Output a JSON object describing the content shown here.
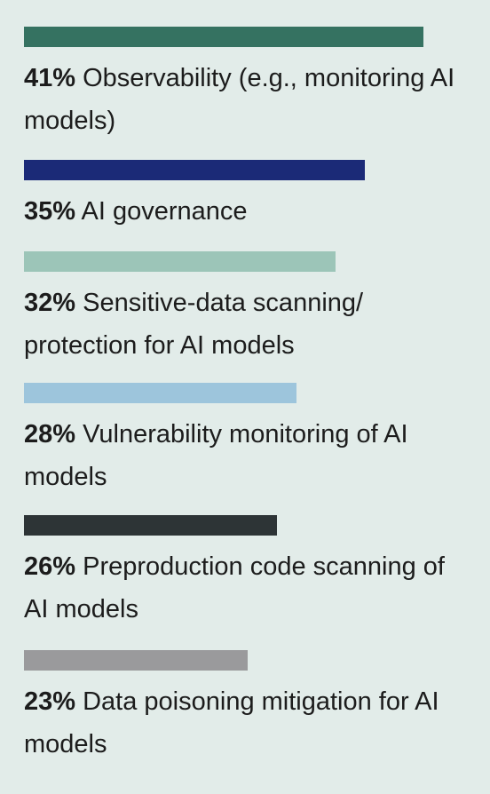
{
  "chart_data": {
    "type": "bar",
    "orientation": "horizontal",
    "title": "",
    "xlabel": "",
    "ylabel": "",
    "xlim": [
      0,
      41
    ],
    "grid": false,
    "categories": [
      "Observability (e.g., monitoring AI models)",
      "AI governance",
      "Sensitive-data scanning/ protection for AI models",
      "Vulnerability monitoring of AI models",
      "Preproduction code scanning of AI models",
      "Data poisoning mitigation for AI models"
    ],
    "values": [
      41,
      35,
      32,
      28,
      26,
      23
    ],
    "value_labels": [
      "41%",
      "35%",
      "32%",
      "28%",
      "26%",
      "23%"
    ],
    "colors": [
      "#357261",
      "#1b2a77",
      "#9cc5b8",
      "#9dc5dc",
      "#2d3436",
      "#9a9a9c"
    ]
  }
}
